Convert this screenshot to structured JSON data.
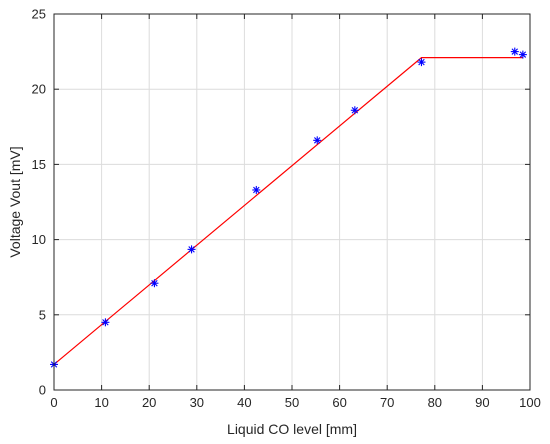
{
  "chart_data": {
    "type": "scatter",
    "xlabel": "Liquid CO level [mm]",
    "ylabel": "Voltage Vout [mV]",
    "xlim": [
      0,
      100
    ],
    "ylim": [
      0,
      25
    ],
    "xticks": [
      "0",
      "10",
      "20",
      "30",
      "40",
      "50",
      "60",
      "70",
      "80",
      "90",
      "100"
    ],
    "yticks": [
      "0",
      "5",
      "10",
      "15",
      "20",
      "25"
    ],
    "grid": true,
    "series": [
      {
        "kind": "markers",
        "marker": "asterisk",
        "color": "#0000ff",
        "x": [
          0,
          10.8,
          21.1,
          28.9,
          42.5,
          55.3,
          63.2,
          77.2,
          96.8,
          98.5
        ],
        "y": [
          1.7,
          4.5,
          7.1,
          9.35,
          13.3,
          16.6,
          18.6,
          21.8,
          22.5,
          22.3
        ]
      },
      {
        "kind": "line",
        "color": "#ff0000",
        "x": [
          0,
          77.2,
          98.5
        ],
        "y": [
          1.7,
          22.1,
          22.1
        ]
      }
    ]
  }
}
